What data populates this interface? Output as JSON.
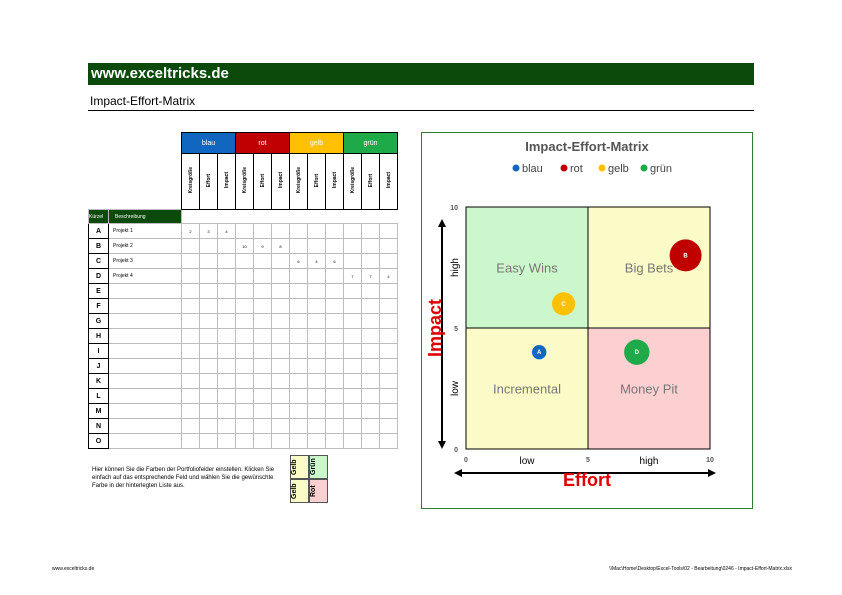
{
  "header": {
    "banner": "www.exceltricks.de",
    "subtitle": "Impact-Effort-Matrix"
  },
  "colors": {
    "banner": "#0b4a0b",
    "blau": "#1167c0",
    "rot": "#c00000",
    "gelb": "#ffc000",
    "gruen": "#1faa4a"
  },
  "table": {
    "groups": [
      "blau",
      "rot",
      "gelb",
      "grün"
    ],
    "subheaders": [
      "Kreisgröße",
      "Effort",
      "Impact"
    ],
    "kurzel_label": "Kürzel",
    "beschreibung_label": "Beschreibung",
    "rows": [
      {
        "key": "A",
        "desc": "Projekt 1",
        "blau": [
          "2",
          "3",
          "4"
        ],
        "rot": [
          "",
          "",
          ""
        ],
        "gelb": [
          "",
          "",
          ""
        ],
        "gruen": [
          "",
          "",
          ""
        ]
      },
      {
        "key": "B",
        "desc": "Projekt 2",
        "blau": [
          "",
          "",
          ""
        ],
        "rot": [
          "10",
          "9",
          "8"
        ],
        "gelb": [
          "",
          "",
          ""
        ],
        "gruen": [
          "",
          "",
          ""
        ]
      },
      {
        "key": "C",
        "desc": "Projekt 3",
        "blau": [
          "",
          "",
          ""
        ],
        "rot": [
          "",
          "",
          ""
        ],
        "gelb": [
          "6",
          "4",
          "6"
        ],
        "gruen": [
          "",
          "",
          ""
        ]
      },
      {
        "key": "D",
        "desc": "Projekt 4",
        "blau": [
          "",
          "",
          ""
        ],
        "rot": [
          "",
          "",
          ""
        ],
        "gelb": [
          "",
          "",
          ""
        ],
        "gruen": [
          "7",
          "7",
          "4"
        ]
      },
      {
        "key": "E",
        "desc": ""
      },
      {
        "key": "F",
        "desc": ""
      },
      {
        "key": "G",
        "desc": ""
      },
      {
        "key": "H",
        "desc": ""
      },
      {
        "key": "I",
        "desc": ""
      },
      {
        "key": "J",
        "desc": ""
      },
      {
        "key": "K",
        "desc": ""
      },
      {
        "key": "L",
        "desc": ""
      },
      {
        "key": "M",
        "desc": ""
      },
      {
        "key": "N",
        "desc": ""
      },
      {
        "key": "O",
        "desc": ""
      }
    ]
  },
  "note": "Hier können Sie die Farben der Portfoliofelder einstellen. Klicken Sie einfach auf das entsprechende Feld und wählen Sie die gewünschte Farbe in der hinterlegten Liste aus.",
  "palette": {
    "c1": "Gelb",
    "c2": "Grün",
    "c3": "Gelb",
    "c4": "Rot"
  },
  "chart_data": {
    "type": "scatter",
    "title": "Impact-Effort-Matrix",
    "legend": [
      "blau",
      "rot",
      "gelb",
      "grün"
    ],
    "legend_position": "top",
    "xlabel": "Effort",
    "ylabel": "Impact",
    "xlim": [
      0,
      10
    ],
    "ylim": [
      0,
      10
    ],
    "x_ticks": [
      "0",
      "5",
      "10"
    ],
    "y_ticks": [
      "0",
      "5",
      "10"
    ],
    "x_zone_labels": [
      "low",
      "high"
    ],
    "y_zone_labels": [
      "low",
      "high"
    ],
    "quadrants": [
      {
        "label": "Easy Wins",
        "color": "#ccf7cc"
      },
      {
        "label": "Big Bets",
        "color": "#fbfbc8"
      },
      {
        "label": "Incremental",
        "color": "#fbfbc8"
      },
      {
        "label": "Money Pit",
        "color": "#fcd0d0"
      }
    ],
    "points": [
      {
        "label": "A",
        "series": "blau",
        "x": 3,
        "y": 4,
        "size": 2,
        "color": "#1167c0"
      },
      {
        "label": "B",
        "series": "rot",
        "x": 9,
        "y": 8,
        "size": 10,
        "color": "#c00000"
      },
      {
        "label": "C",
        "series": "gelb",
        "x": 4,
        "y": 6,
        "size": 6,
        "color": "#ffc000"
      },
      {
        "label": "D",
        "series": "grün",
        "x": 7,
        "y": 4,
        "size": 7,
        "color": "#1faa4a"
      }
    ]
  },
  "footer": {
    "left": "www.exceltricks.de",
    "right": "\\\\Mac\\Home\\Desktop\\Excel-Tools\\02 - Bearbeitung\\0246 - Impact-Effort-Matrix.xlsx"
  }
}
